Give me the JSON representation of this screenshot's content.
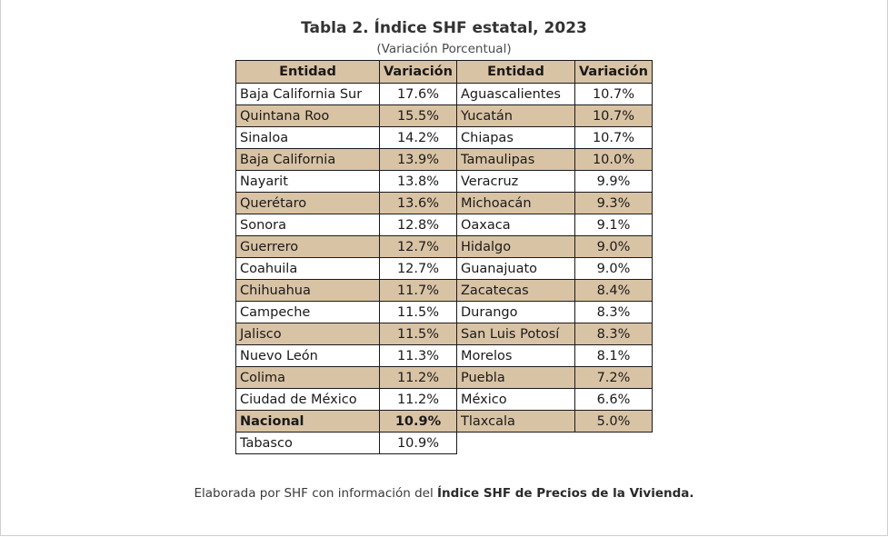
{
  "title": "Tabla 2. Índice SHF estatal, 2023",
  "subtitle": "(Variación Porcentual)",
  "table": {
    "headers": [
      "Entidad",
      "Variación",
      "Entidad",
      "Variación"
    ],
    "rows": [
      [
        "Baja California Sur",
        "17.6%",
        "Aguascalientes",
        "10.7%"
      ],
      [
        "Quintana Roo",
        "15.5%",
        "Yucatán",
        "10.7%"
      ],
      [
        "Sinaloa",
        "14.2%",
        "Chiapas",
        "10.7%"
      ],
      [
        "Baja California",
        "13.9%",
        "Tamaulipas",
        "10.0%"
      ],
      [
        "Nayarit",
        "13.8%",
        "Veracruz",
        "9.9%"
      ],
      [
        "Querétaro",
        "13.6%",
        "Michoacán",
        "9.3%"
      ],
      [
        "Sonora",
        "12.8%",
        "Oaxaca",
        "9.1%"
      ],
      [
        "Guerrero",
        "12.7%",
        "Hidalgo",
        "9.0%"
      ],
      [
        "Coahuila",
        "12.7%",
        "Guanajuato",
        "9.0%"
      ],
      [
        "Chihuahua",
        "11.7%",
        "Zacatecas",
        "8.4%"
      ],
      [
        "Campeche",
        "11.5%",
        "Durango",
        "8.3%"
      ],
      [
        "Jalisco",
        "11.5%",
        "San Luis Potosí",
        "8.3%"
      ],
      [
        "Nuevo León",
        "11.3%",
        "Morelos",
        "8.1%"
      ],
      [
        "Colima",
        "11.2%",
        "Puebla",
        "7.2%"
      ],
      [
        "Ciudad de México",
        "11.2%",
        "México",
        "6.6%"
      ],
      [
        "Nacional",
        "10.9%",
        "Tlaxcala",
        "5.0%"
      ],
      [
        "Tabasco",
        "10.9%",
        "",
        ""
      ]
    ]
  },
  "footer": {
    "prefix": "Elaborada por SHF con información del ",
    "source": "Índice SHF de Precios de la Vivienda."
  },
  "colors": {
    "shade": "#d9c3a5",
    "border": "#1a1a1a"
  }
}
